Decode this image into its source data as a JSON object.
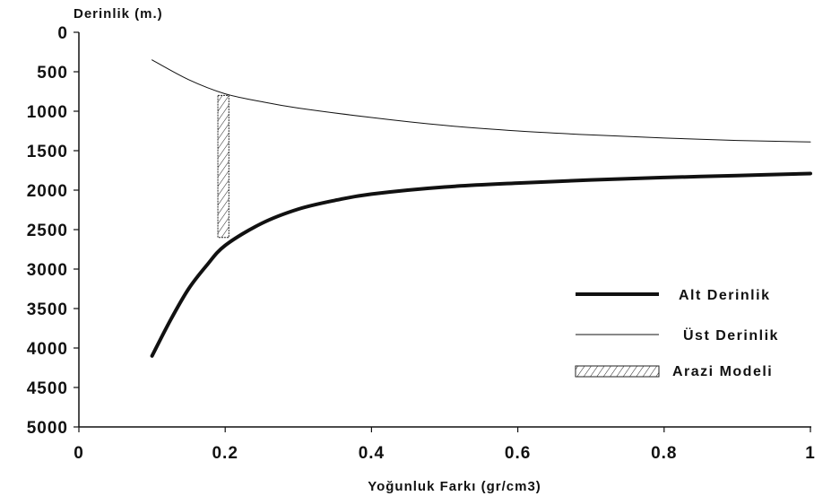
{
  "chart_data": {
    "type": "line",
    "ylabel": "Derinlik (m.)",
    "xlabel": "Yoğunluk Farkı (gr/cm3)",
    "xlim": [
      0,
      1
    ],
    "ylim": [
      0,
      5000
    ],
    "y_inverted": true,
    "grid": false,
    "legend_position": "right",
    "x_ticks": [
      "0",
      "0.2",
      "0.4",
      "0.6",
      "0.8",
      "1"
    ],
    "y_ticks": [
      "0",
      "500",
      "1000",
      "1500",
      "2000",
      "2500",
      "3000",
      "3500",
      "4000",
      "4500",
      "5000"
    ],
    "series": [
      {
        "name": "Alt Derinlik",
        "style": "thick",
        "color": "#111111",
        "x": [
          0.1,
          0.125,
          0.15,
          0.175,
          0.2,
          0.25,
          0.3,
          0.35,
          0.4,
          0.5,
          0.6,
          0.7,
          0.8,
          0.9,
          1.0
        ],
        "y": [
          4100,
          3650,
          3250,
          2950,
          2700,
          2420,
          2240,
          2130,
          2050,
          1960,
          1910,
          1870,
          1840,
          1815,
          1790
        ]
      },
      {
        "name": "Üst Derinlik",
        "style": "thin",
        "color": "#111111",
        "x": [
          0.1,
          0.15,
          0.2,
          0.25,
          0.3,
          0.4,
          0.5,
          0.6,
          0.7,
          0.8,
          0.9,
          1.0
        ],
        "y": [
          350,
          600,
          780,
          880,
          960,
          1080,
          1180,
          1250,
          1300,
          1340,
          1370,
          1390
        ]
      },
      {
        "name": "Arazi Modeli",
        "style": "hatched-band",
        "x_range": [
          0.19,
          0.205
        ],
        "y_range": [
          800,
          2600
        ]
      }
    ]
  }
}
